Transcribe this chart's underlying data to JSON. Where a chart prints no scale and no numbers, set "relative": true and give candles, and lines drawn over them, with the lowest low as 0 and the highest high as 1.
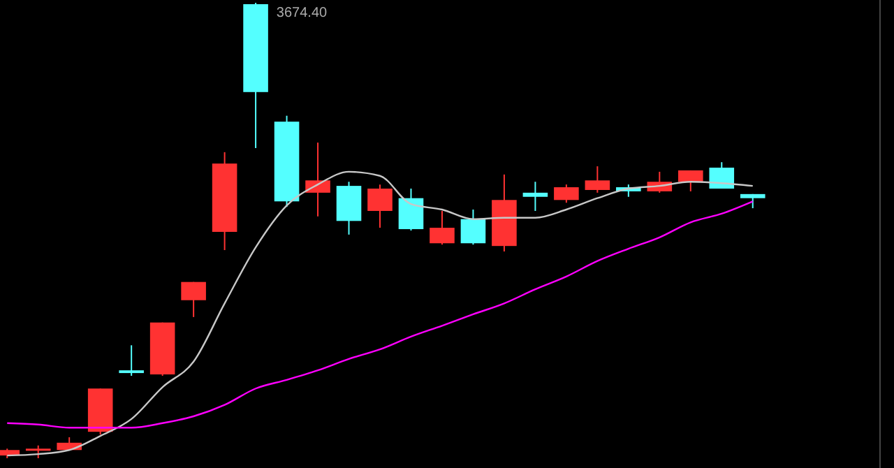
{
  "chart_data": {
    "type": "candlestick",
    "relative": true,
    "categories": [
      null,
      null,
      null,
      null,
      null,
      null,
      null,
      null,
      null,
      null,
      null,
      null,
      null,
      null,
      null,
      null,
      null,
      null,
      null,
      null,
      null,
      null,
      null,
      null,
      null
    ],
    "ohlc": [
      [
        0.006,
        0.021,
        0,
        0.018
      ],
      [
        0.018,
        0.028,
        0,
        0.021
      ],
      [
        0.018,
        0.046,
        0.018,
        0.034
      ],
      [
        0.058,
        0.153,
        0.052,
        0.153
      ],
      [
        0.193,
        0.248,
        0.181,
        0.187
      ],
      [
        0.184,
        0.298,
        0.181,
        0.298
      ],
      [
        0.347,
        0.387,
        0.31,
        0.387
      ],
      [
        0.497,
        0.672,
        0.457,
        0.647
      ],
      [
        0.997,
        1,
        0.681,
        0.804
      ],
      [
        0.739,
        0.752,
        0.552,
        0.564
      ],
      [
        0.583,
        0.693,
        0.531,
        0.61
      ],
      [
        0.598,
        0.607,
        0.491,
        0.521
      ],
      [
        0.543,
        0.601,
        0.506,
        0.592
      ],
      [
        0.571,
        0.592,
        0.5,
        0.503
      ],
      [
        0.472,
        0.543,
        0.469,
        0.506
      ],
      [
        0.525,
        0.546,
        0.469,
        0.472
      ],
      [
        0.466,
        0.623,
        0.454,
        0.567
      ],
      [
        0.583,
        0.607,
        0.543,
        0.574
      ],
      [
        0.567,
        0.601,
        0.561,
        0.595
      ],
      [
        0.589,
        0.641,
        0.583,
        0.61
      ],
      [
        0.595,
        0.601,
        0.574,
        0.586
      ],
      [
        0.586,
        0.629,
        0.583,
        0.607
      ],
      [
        0.607,
        0.632,
        0.586,
        0.632
      ],
      [
        0.638,
        0.65,
        0.592,
        0.592
      ],
      [
        0.58,
        0.58,
        0.549,
        0.571
      ]
    ],
    "colors": [
      "#ff3232",
      "#ff3232",
      "#ff3232",
      "#ff3232",
      "#54ffff",
      "#ff3232",
      "#ff3232",
      "#ff3232",
      "#54ffff",
      "#54ffff",
      "#ff3232",
      "#54ffff",
      "#ff3232",
      "#54ffff",
      "#ff3232",
      "#54ffff",
      "#ff3232",
      "#54ffff",
      "#ff3232",
      "#ff3232",
      "#54ffff",
      "#ff3232",
      "#ff3232",
      "#54ffff",
      "#54ffff"
    ],
    "series": [
      {
        "type": "line",
        "color": "#c8c8c8",
        "values": [
          0.006,
          0.009,
          0.018,
          0.049,
          0.086,
          0.156,
          0.212,
          0.34,
          0.463,
          0.555,
          0.601,
          0.629,
          0.62,
          0.558,
          0.546,
          0.525,
          0.528,
          0.528,
          0.546,
          0.571,
          0.592,
          0.598,
          0.607,
          0.604,
          0.598
        ]
      },
      {
        "type": "line",
        "color": "#ff00ff",
        "values": [
          0.077,
          0.074,
          0.067,
          0.067,
          0.067,
          0.077,
          0.092,
          0.117,
          0.153,
          0.172,
          0.193,
          0.218,
          0.239,
          0.267,
          0.291,
          0.316,
          0.34,
          0.371,
          0.399,
          0.433,
          0.46,
          0.485,
          0.518,
          0.537,
          0.564
        ]
      }
    ],
    "annotations": [
      "3674.40"
    ]
  }
}
